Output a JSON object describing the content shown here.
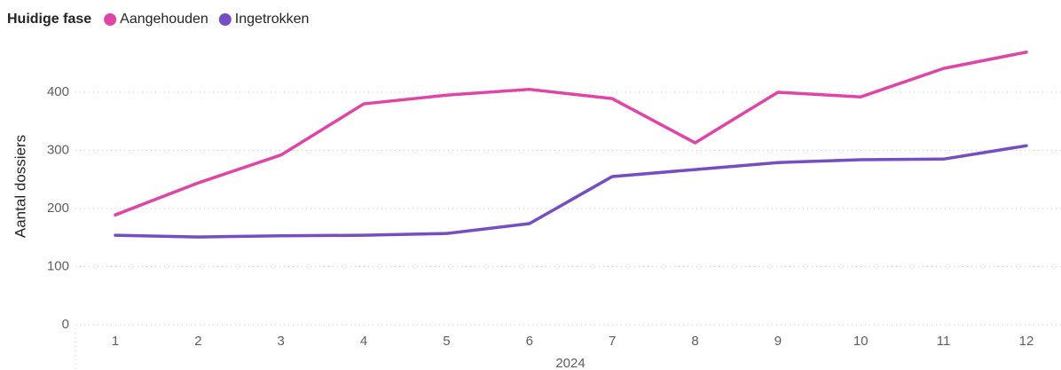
{
  "chart_data": {
    "type": "line",
    "legend_title": "Huidige fase",
    "y_label": "Aantal dossiers",
    "x_label": "2024",
    "categories": [
      "1",
      "2",
      "3",
      "4",
      "5",
      "6",
      "7",
      "8",
      "9",
      "10",
      "11",
      "12"
    ],
    "series": [
      {
        "name": "Aangehouden",
        "color": "#e044a7",
        "values": [
          189,
          244,
          292,
          380,
          395,
          405,
          389,
          313,
          400,
          392,
          441,
          469
        ]
      },
      {
        "name": "Ingetrokken",
        "color": "#744ec2",
        "values": [
          154,
          151,
          153,
          154,
          157,
          174,
          255,
          267,
          279,
          284,
          285,
          308
        ]
      }
    ],
    "ylim": [
      0,
      490
    ],
    "yticks": [
      0,
      100,
      200,
      300,
      400
    ],
    "grid": true,
    "legend": "top-left"
  }
}
